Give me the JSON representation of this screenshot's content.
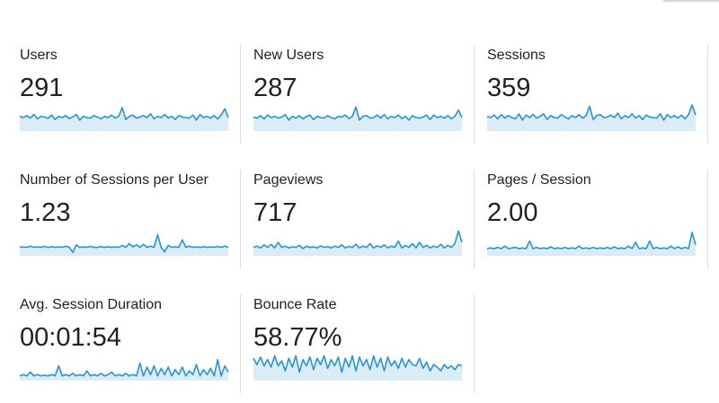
{
  "colors": {
    "spark_line": "#2b93d1",
    "spark_fill": "#d9ecf8",
    "divider": "#dadce0",
    "text": "#212121"
  },
  "metrics": [
    {
      "label": "Users",
      "value": "291",
      "trend": [
        0.55,
        0.5,
        0.58,
        0.48,
        0.62,
        0.45,
        0.55,
        0.52,
        0.47,
        0.6,
        0.42,
        0.55,
        0.5,
        0.58,
        0.46,
        0.53,
        0.62,
        0.4,
        0.55,
        0.5,
        0.48,
        0.58,
        0.52,
        0.45,
        0.55,
        0.5,
        0.6,
        0.48,
        0.55,
        0.9,
        0.42,
        0.55,
        0.6,
        0.48,
        0.52,
        0.58,
        0.5,
        0.65,
        0.45,
        0.55,
        0.5,
        0.62,
        0.48,
        0.55,
        0.42,
        0.58,
        0.52,
        0.5,
        0.48,
        0.6,
        0.4,
        0.62,
        0.5,
        0.55,
        0.48,
        0.58,
        0.45,
        0.6,
        0.85,
        0.5
      ]
    },
    {
      "label": "New Users",
      "value": "287",
      "trend": [
        0.52,
        0.48,
        0.58,
        0.45,
        0.6,
        0.5,
        0.55,
        0.48,
        0.52,
        0.62,
        0.4,
        0.55,
        0.48,
        0.58,
        0.45,
        0.55,
        0.6,
        0.42,
        0.55,
        0.5,
        0.48,
        0.58,
        0.5,
        0.45,
        0.55,
        0.52,
        0.6,
        0.46,
        0.55,
        0.92,
        0.4,
        0.55,
        0.58,
        0.48,
        0.5,
        0.6,
        0.48,
        0.62,
        0.45,
        0.55,
        0.5,
        0.6,
        0.46,
        0.55,
        0.4,
        0.58,
        0.5,
        0.48,
        0.52,
        0.6,
        0.42,
        0.6,
        0.5,
        0.55,
        0.48,
        0.58,
        0.45,
        0.55,
        0.8,
        0.5
      ]
    },
    {
      "label": "Sessions",
      "value": "359",
      "trend": [
        0.55,
        0.5,
        0.6,
        0.45,
        0.62,
        0.48,
        0.58,
        0.5,
        0.45,
        0.65,
        0.4,
        0.6,
        0.5,
        0.62,
        0.48,
        0.55,
        0.65,
        0.42,
        0.58,
        0.5,
        0.48,
        0.62,
        0.52,
        0.45,
        0.58,
        0.5,
        0.62,
        0.48,
        0.58,
        0.95,
        0.42,
        0.58,
        0.62,
        0.5,
        0.52,
        0.6,
        0.5,
        0.68,
        0.45,
        0.58,
        0.5,
        0.65,
        0.48,
        0.58,
        0.42,
        0.6,
        0.52,
        0.5,
        0.48,
        0.65,
        0.4,
        0.62,
        0.5,
        0.58,
        0.48,
        0.6,
        0.45,
        0.62,
        1.0,
        0.6
      ]
    },
    {
      "label": "Number of Sessions per User",
      "value": "1.23",
      "trend": [
        0.3,
        0.32,
        0.3,
        0.35,
        0.3,
        0.32,
        0.3,
        0.34,
        0.3,
        0.33,
        0.3,
        0.32,
        0.3,
        0.35,
        0.3,
        0.1,
        0.4,
        0.3,
        0.32,
        0.3,
        0.34,
        0.3,
        0.3,
        0.33,
        0.3,
        0.32,
        0.3,
        0.32,
        0.3,
        0.38,
        0.3,
        0.45,
        0.32,
        0.4,
        0.3,
        0.42,
        0.3,
        0.35,
        0.3,
        0.8,
        0.3,
        0.12,
        0.38,
        0.3,
        0.32,
        0.3,
        0.6,
        0.3,
        0.35,
        0.3,
        0.32,
        0.3,
        0.33,
        0.3,
        0.32,
        0.3,
        0.34,
        0.3,
        0.35,
        0.3
      ]
    },
    {
      "label": "Pageviews",
      "value": "717",
      "trend": [
        0.3,
        0.35,
        0.28,
        0.4,
        0.3,
        0.42,
        0.28,
        0.5,
        0.3,
        0.35,
        0.28,
        0.32,
        0.3,
        0.38,
        0.25,
        0.35,
        0.3,
        0.32,
        0.28,
        0.36,
        0.3,
        0.33,
        0.28,
        0.35,
        0.3,
        0.4,
        0.28,
        0.34,
        0.3,
        0.42,
        0.28,
        0.35,
        0.3,
        0.45,
        0.28,
        0.36,
        0.3,
        0.4,
        0.28,
        0.35,
        0.3,
        0.55,
        0.28,
        0.38,
        0.3,
        0.45,
        0.28,
        0.5,
        0.3,
        0.38,
        0.28,
        0.35,
        0.3,
        0.42,
        0.28,
        0.38,
        0.3,
        0.45,
        0.95,
        0.5
      ]
    },
    {
      "label": "Pages / Session",
      "value": "2.00",
      "trend": [
        0.25,
        0.28,
        0.25,
        0.3,
        0.25,
        0.35,
        0.25,
        0.28,
        0.3,
        0.25,
        0.28,
        0.25,
        0.55,
        0.25,
        0.3,
        0.25,
        0.28,
        0.25,
        0.32,
        0.25,
        0.28,
        0.25,
        0.3,
        0.25,
        0.28,
        0.25,
        0.35,
        0.25,
        0.28,
        0.25,
        0.3,
        0.25,
        0.28,
        0.25,
        0.3,
        0.25,
        0.32,
        0.25,
        0.28,
        0.25,
        0.35,
        0.25,
        0.5,
        0.25,
        0.28,
        0.25,
        0.55,
        0.25,
        0.3,
        0.25,
        0.28,
        0.25,
        0.35,
        0.25,
        0.32,
        0.25,
        0.3,
        0.25,
        0.9,
        0.4
      ]
    },
    {
      "label": "Avg. Session Duration",
      "value": "00:01:54",
      "trend": [
        0.15,
        0.2,
        0.15,
        0.3,
        0.15,
        0.2,
        0.15,
        0.18,
        0.15,
        0.2,
        0.15,
        0.55,
        0.15,
        0.2,
        0.15,
        0.25,
        0.15,
        0.2,
        0.15,
        0.35,
        0.15,
        0.2,
        0.15,
        0.25,
        0.15,
        0.2,
        0.3,
        0.15,
        0.2,
        0.15,
        0.25,
        0.15,
        0.2,
        0.15,
        0.65,
        0.15,
        0.5,
        0.2,
        0.55,
        0.15,
        0.45,
        0.2,
        0.5,
        0.15,
        0.4,
        0.2,
        0.5,
        0.15,
        0.35,
        0.2,
        0.6,
        0.15,
        0.4,
        0.2,
        0.45,
        0.15,
        0.8,
        0.15,
        0.55,
        0.3
      ]
    },
    {
      "label": "Bounce Rate",
      "value": "58.77%",
      "trend": [
        0.85,
        0.6,
        0.9,
        0.55,
        0.8,
        0.5,
        0.95,
        0.55,
        0.75,
        0.35,
        0.85,
        0.5,
        0.95,
        0.3,
        0.8,
        0.55,
        0.9,
        0.4,
        0.85,
        0.6,
        0.95,
        0.45,
        0.8,
        0.55,
        0.9,
        0.3,
        0.85,
        0.5,
        0.95,
        0.35,
        0.9,
        0.55,
        0.8,
        0.4,
        0.95,
        0.5,
        0.85,
        0.35,
        0.9,
        0.55,
        0.75,
        0.45,
        0.85,
        0.5,
        0.8,
        0.6,
        0.55,
        0.85,
        0.45,
        0.7,
        0.35,
        0.6,
        0.5,
        0.35,
        0.6,
        0.45,
        0.55,
        0.4,
        0.6,
        0.55
      ]
    }
  ]
}
